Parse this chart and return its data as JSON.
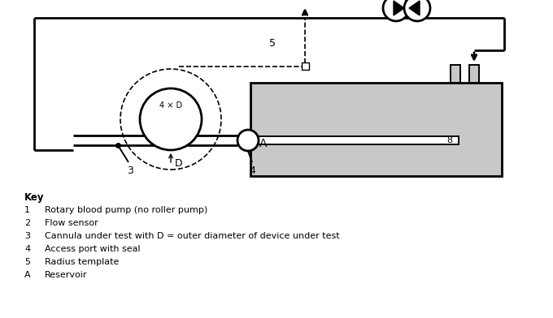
{
  "bg_color": "#ffffff",
  "line_color": "#000000",
  "gray_fill": "#c8c8c8",
  "key_title": "Key",
  "key_items": [
    [
      "1",
      "Rotary blood pump (no roller pump)"
    ],
    [
      "2",
      "Flow sensor"
    ],
    [
      "3",
      "Cannula under test with D = outer diameter of device under test"
    ],
    [
      "4",
      "Access port with seal"
    ],
    [
      "5",
      "Radius template"
    ],
    [
      "A",
      "Reservoir"
    ]
  ],
  "lw": 1.4,
  "lw_thick": 2.0
}
